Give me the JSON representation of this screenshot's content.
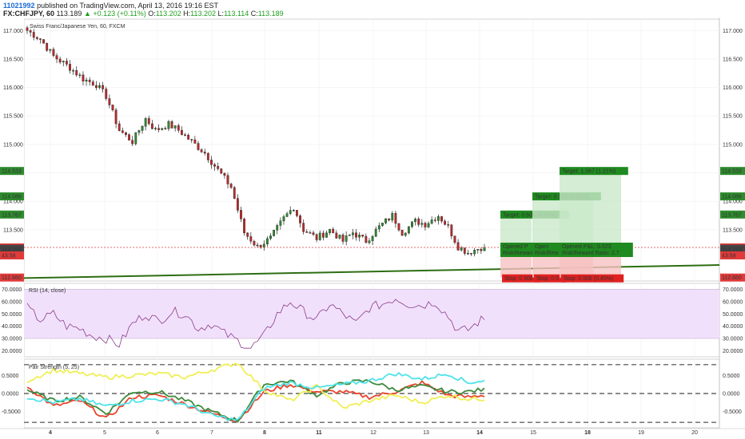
{
  "header": {
    "user": "11021992",
    "published": "published on TradingView.com, April 13, 2016 19:16 EST",
    "symbol": "FX:CHFJPY, 60",
    "last": "113.189",
    "change": "▲ +0.123 (+0.11%)",
    "o_label": "O:",
    "o_value": "113.202",
    "h_label": "H:",
    "h_value": "113.202",
    "l_label": "L:",
    "l_value": "113.114",
    "c_label": "C:",
    "c_value": "113.189"
  },
  "colors": {
    "up": "#2e8b2e",
    "down": "#c0282a",
    "trend": "#2d6e12",
    "rsi": "#8a3d8a",
    "rsi_band": "#f1e0fb",
    "red_line": "#e8442c",
    "green_line": "#3d8a3d",
    "yellow_line": "#f0ef55",
    "cyan_line": "#4fe3e8"
  },
  "chart_data": [
    {
      "type": "candlestick",
      "title": "Swiss Franc/Japanese Yen, 60, FXCM",
      "ylim": [
        112.6,
        117.2
      ],
      "y_ticks": [
        "117.000",
        "116.500",
        "116.000",
        "115.500",
        "115.000",
        "114.500",
        "114.000",
        "113.500"
      ],
      "x_ticks": [
        "4",
        "5",
        "6",
        "7",
        "8",
        "11",
        "12",
        "13",
        "14",
        "15",
        "18",
        "19",
        "20"
      ],
      "price_path": [
        [
          0,
          117.0
        ],
        [
          4,
          116.85
        ],
        [
          8,
          116.55
        ],
        [
          13,
          116.35
        ],
        [
          17,
          116.15
        ],
        [
          21,
          116.05
        ],
        [
          24,
          115.85
        ],
        [
          28,
          115.25
        ],
        [
          32,
          115.05
        ],
        [
          36,
          115.45
        ],
        [
          39,
          115.25
        ],
        [
          43,
          115.35
        ],
        [
          46,
          115.25
        ],
        [
          50,
          115.05
        ],
        [
          54,
          114.85
        ],
        [
          58,
          114.55
        ],
        [
          62,
          114.25
        ],
        [
          66,
          113.45
        ],
        [
          70,
          113.2
        ],
        [
          74,
          113.35
        ],
        [
          78,
          113.7
        ],
        [
          81,
          113.9
        ],
        [
          84,
          113.5
        ],
        [
          88,
          113.35
        ],
        [
          92,
          113.5
        ],
        [
          96,
          113.3
        ],
        [
          99,
          113.45
        ],
        [
          103,
          113.3
        ],
        [
          107,
          113.55
        ],
        [
          111,
          113.75
        ],
        [
          114,
          113.45
        ],
        [
          118,
          113.65
        ],
        [
          121,
          113.6
        ],
        [
          125,
          113.75
        ],
        [
          128,
          113.55
        ],
        [
          131,
          113.2
        ],
        [
          134,
          113.1
        ],
        [
          138,
          113.19
        ]
      ],
      "last_price": "113.189",
      "countdown": "43:58",
      "price_tags": [
        {
          "value": 114.533,
          "label": "114.533",
          "color": "#2e8b2e"
        },
        {
          "value": 114.086,
          "label": "114.086",
          "color": "#2e8b2e"
        },
        {
          "value": 113.767,
          "label": "113.767",
          "color": "#2e8b2e"
        },
        {
          "value": 113.189,
          "label": "113.189",
          "color": "#e03a3a"
        },
        {
          "value": 113.166,
          "label": "113.166",
          "color": "#444444"
        },
        {
          "value": 113.159,
          "label": "113.159",
          "color": "#444444"
        },
        {
          "value": 113.153,
          "label": "113.153",
          "color": "#444444"
        },
        {
          "value": 112.66,
          "label": "112.660",
          "color": "#e03a3a"
        }
      ],
      "trendline": [
        [
          113.0,
          112.78
        ],
        [
          113.18,
          112.86
        ]
      ],
      "positions": [
        {
          "target": "Target: 0.608 (0.54%)",
          "stop": "Stop: 0.506",
          "pnl": "Opened P",
          "rr": "Risk/Reward",
          "target_price": 113.767,
          "stop_price": 112.66
        },
        {
          "target": "Target: 0.913 (0.81%)",
          "stop": "Stop: 0.5",
          "pnl": "Open",
          "rr": "Risk/Rew",
          "target_price": 114.086,
          "stop_price": 112.66
        },
        {
          "target": "Target: 1.367 (1.21%)",
          "stop": "Stop: 0.506 (0.45%)",
          "pnl": "Opened P&L: 0.023",
          "rr": "Risk/Reward Ratio: 2.7",
          "target_price": 114.533,
          "stop_price": 112.66
        }
      ]
    },
    {
      "type": "line",
      "title": "RSI (14, close)",
      "ylim": [
        15,
        75
      ],
      "y_ticks": [
        "70.0000",
        "60.0000",
        "50.0000",
        "40.0000",
        "30.0000",
        "20.0000"
      ],
      "band": [
        30,
        70
      ],
      "series": [
        {
          "values": [
            [
              0,
              55
            ],
            [
              4,
              45
            ],
            [
              8,
              50
            ],
            [
              12,
              40
            ],
            [
              16,
              38
            ],
            [
              20,
              32
            ],
            [
              24,
              30
            ],
            [
              28,
              25
            ],
            [
              32,
              42
            ],
            [
              36,
              50
            ],
            [
              40,
              44
            ],
            [
              44,
              52
            ],
            [
              48,
              50
            ],
            [
              52,
              38
            ],
            [
              56,
              42
            ],
            [
              60,
              34
            ],
            [
              64,
              28
            ],
            [
              68,
              22
            ],
            [
              72,
              32
            ],
            [
              76,
              50
            ],
            [
              80,
              60
            ],
            [
              84,
              52
            ],
            [
              88,
              45
            ],
            [
              92,
              58
            ],
            [
              96,
              50
            ],
            [
              100,
              42
            ],
            [
              104,
              55
            ],
            [
              108,
              58
            ],
            [
              112,
              63
            ],
            [
              116,
              58
            ],
            [
              120,
              57
            ],
            [
              124,
              60
            ],
            [
              128,
              48
            ],
            [
              131,
              36
            ],
            [
              134,
              37
            ],
            [
              138,
              45
            ]
          ]
        }
      ]
    },
    {
      "type": "line",
      "title": "Pair Strength (5, 25)",
      "ylim": [
        -0.95,
        0.95
      ],
      "y_ticks": [
        "0.5000",
        "0.0000",
        "-0.5000"
      ],
      "dashed_levels": [
        0.8,
        0,
        -0.8
      ],
      "series": [
        {
          "values": [
            [
              0,
              0.2
            ],
            [
              8,
              -0.35
            ],
            [
              16,
              -0.2
            ],
            [
              24,
              -0.7
            ],
            [
              32,
              -0.1
            ],
            [
              40,
              -0.05
            ],
            [
              48,
              -0.3
            ],
            [
              56,
              -0.55
            ],
            [
              64,
              -0.75
            ],
            [
              72,
              0.05
            ],
            [
              80,
              0.25
            ],
            [
              88,
              0.05
            ],
            [
              96,
              0.05
            ],
            [
              104,
              -0.1
            ],
            [
              112,
              0.05
            ],
            [
              120,
              0.3
            ],
            [
              128,
              -0.05
            ],
            [
              134,
              -0.1
            ],
            [
              138,
              -0.05
            ]
          ]
        },
        {
          "values": [
            [
              0,
              0.1
            ],
            [
              8,
              -0.2
            ],
            [
              16,
              -0.1
            ],
            [
              24,
              -0.55
            ],
            [
              32,
              0.05
            ],
            [
              40,
              0.05
            ],
            [
              48,
              -0.2
            ],
            [
              56,
              -0.5
            ],
            [
              64,
              -0.75
            ],
            [
              72,
              0.25
            ],
            [
              80,
              0.35
            ],
            [
              88,
              -0.05
            ],
            [
              96,
              0.3
            ],
            [
              104,
              0.35
            ],
            [
              112,
              0.1
            ],
            [
              120,
              0.2
            ],
            [
              128,
              0.05
            ],
            [
              134,
              0.05
            ],
            [
              138,
              0.1
            ]
          ]
        },
        {
          "values": [
            [
              0,
              0.35
            ],
            [
              8,
              0.65
            ],
            [
              16,
              0.55
            ],
            [
              24,
              0.45
            ],
            [
              32,
              0.5
            ],
            [
              40,
              0.55
            ],
            [
              48,
              0.45
            ],
            [
              56,
              0.65
            ],
            [
              64,
              0.85
            ],
            [
              72,
              0.1
            ],
            [
              80,
              -0.2
            ],
            [
              88,
              0.2
            ],
            [
              96,
              -0.4
            ],
            [
              104,
              -0.2
            ],
            [
              112,
              -0.05
            ],
            [
              120,
              -0.25
            ],
            [
              128,
              -0.05
            ],
            [
              134,
              -0.15
            ],
            [
              138,
              -0.15
            ]
          ]
        },
        {
          "values": [
            [
              0,
              -0.1
            ],
            [
              8,
              -0.25
            ],
            [
              16,
              -0.15
            ],
            [
              24,
              -0.35
            ],
            [
              32,
              -0.2
            ],
            [
              40,
              -0.15
            ],
            [
              48,
              -0.3
            ],
            [
              56,
              -0.6
            ],
            [
              64,
              -0.75
            ],
            [
              72,
              0.15
            ],
            [
              80,
              0.3
            ],
            [
              88,
              0.15
            ],
            [
              96,
              0.25
            ],
            [
              104,
              0.35
            ],
            [
              112,
              0.55
            ],
            [
              120,
              0.4
            ],
            [
              128,
              0.55
            ],
            [
              134,
              0.3
            ],
            [
              138,
              0.35
            ]
          ]
        }
      ]
    }
  ]
}
